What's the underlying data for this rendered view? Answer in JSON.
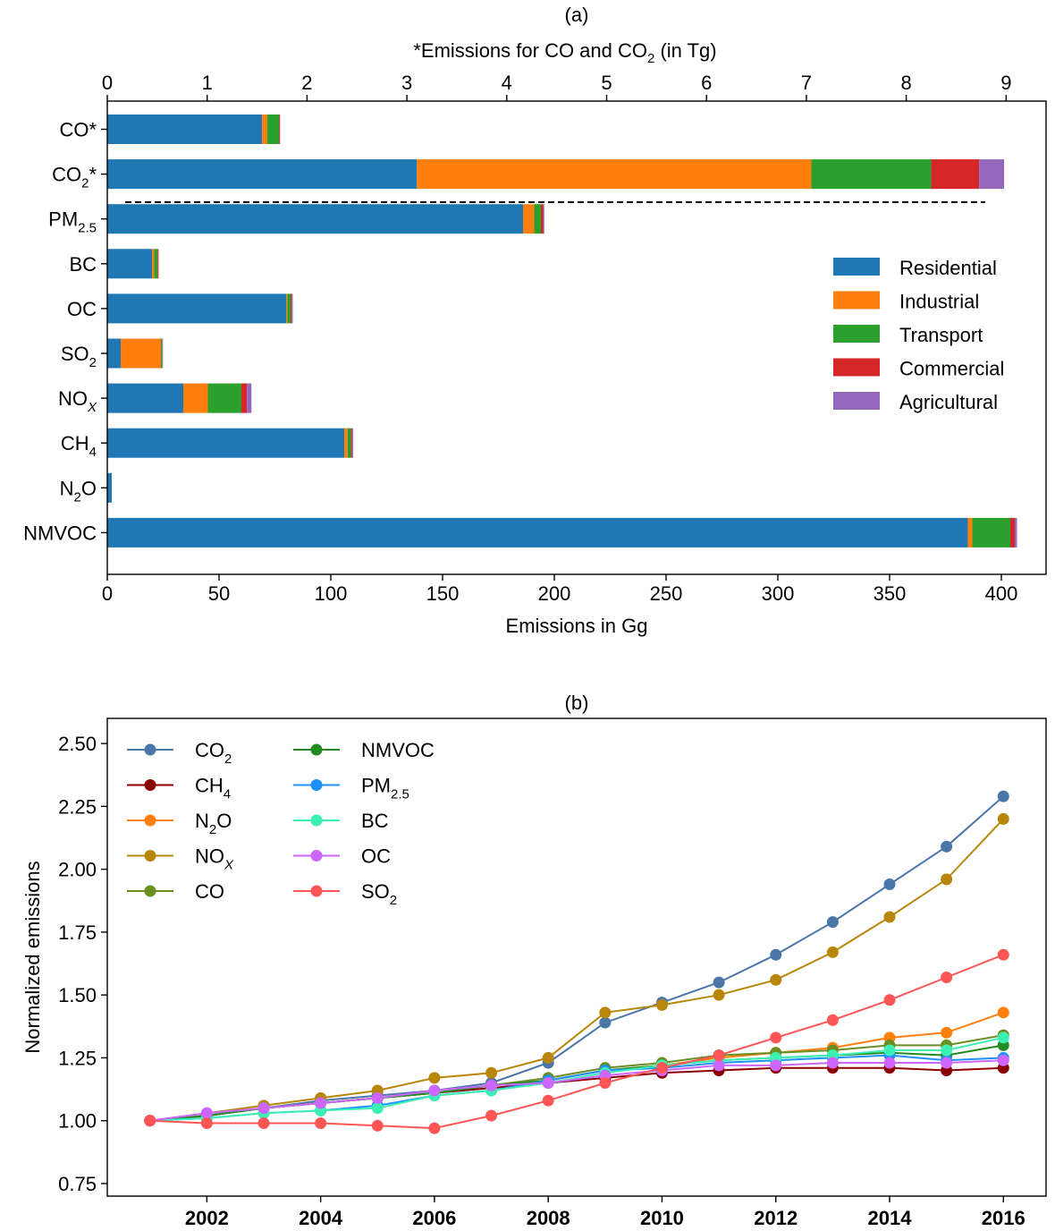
{
  "chart_data": [
    {
      "type": "bar",
      "orientation": "horizontal",
      "stacked": true,
      "panel_label": "(a)",
      "title": "",
      "xlabel": "Emissions in Gg",
      "xlim": [
        0,
        420
      ],
      "xticks": [
        0,
        50,
        100,
        150,
        200,
        250,
        300,
        350,
        400
      ],
      "top_axis": {
        "label_main": "*Emissions for CO and CO",
        "label_sub": "2",
        "label_unit": " (in Tg)",
        "xlim": [
          0,
          9.4
        ],
        "xticks": [
          0,
          1,
          2,
          3,
          4,
          5,
          6,
          7,
          8,
          9
        ],
        "applies_to": [
          "CO*",
          "CO2*"
        ]
      },
      "categories": [
        {
          "base": "CO",
          "sub": "",
          "suffix": "*"
        },
        {
          "base": "CO",
          "sub": "2",
          "suffix": "*"
        },
        {
          "base": "PM",
          "sub": "2.5",
          "suffix": ""
        },
        {
          "base": "BC",
          "sub": "",
          "suffix": ""
        },
        {
          "base": "OC",
          "sub": "",
          "suffix": ""
        },
        {
          "base": "SO",
          "sub": "2",
          "suffix": ""
        },
        {
          "base": "NO",
          "sub": "X",
          "suffix": ""
        },
        {
          "base": "CH",
          "sub": "4",
          "suffix": ""
        },
        {
          "base": "N",
          "sub": "2",
          "suffix": "O"
        },
        {
          "base": "NMVOC",
          "sub": "",
          "suffix": ""
        }
      ],
      "units": [
        "Tg",
        "Tg",
        "Gg",
        "Gg",
        "Gg",
        "Gg",
        "Gg",
        "Gg",
        "Gg",
        "Gg"
      ],
      "series": [
        {
          "name": "Residential",
          "color": "#1f77b4",
          "values": [
            1.55,
            3.1,
            186,
            20,
            80,
            6,
            34,
            106,
            2,
            385
          ]
        },
        {
          "name": "Industrial",
          "color": "#ff7f0e",
          "values": [
            0.05,
            3.95,
            5,
            1,
            0.5,
            18,
            11,
            1.5,
            0,
            2
          ]
        },
        {
          "name": "Transport",
          "color": "#2ca02c",
          "values": [
            0.12,
            1.2,
            3,
            1.5,
            1.5,
            0.5,
            15,
            1.5,
            0,
            17
          ]
        },
        {
          "name": "Commercial",
          "color": "#d62728",
          "values": [
            0.01,
            0.48,
            1,
            0.3,
            0.5,
            0.2,
            2.5,
            0.5,
            0,
            2
          ]
        },
        {
          "name": "Agricultural",
          "color": "#9467bd",
          "values": [
            0.0,
            0.25,
            0.5,
            0.2,
            0.5,
            0.1,
            2,
            0.5,
            0,
            1
          ]
        }
      ],
      "legend_position": "right"
    },
    {
      "type": "line",
      "panel_label": "(b)",
      "title": "",
      "xlabel": "",
      "ylabel": "Normalized emissions",
      "xlim": [
        2000.25,
        2016.75
      ],
      "ylim": [
        0.7,
        2.6
      ],
      "xticks": [
        2002,
        2004,
        2006,
        2008,
        2010,
        2012,
        2014,
        2016
      ],
      "yticks": [
        "0.75",
        "1.00",
        "1.25",
        "1.50",
        "1.75",
        "2.00",
        "2.25",
        "2.50"
      ],
      "x": [
        2001,
        2002,
        2003,
        2004,
        2005,
        2006,
        2007,
        2008,
        2009,
        2010,
        2011,
        2012,
        2013,
        2014,
        2015,
        2016
      ],
      "series": [
        {
          "name": {
            "base": "CO",
            "sub": "2"
          },
          "color": "#4a76a8",
          "values": [
            1.0,
            1.02,
            1.05,
            1.08,
            1.1,
            1.12,
            1.15,
            1.23,
            1.39,
            1.47,
            1.55,
            1.66,
            1.79,
            1.94,
            2.09,
            2.29
          ]
        },
        {
          "name": {
            "base": "CH",
            "sub": "4"
          },
          "color": "#8b0000",
          "values": [
            1.0,
            1.02,
            1.05,
            1.07,
            1.09,
            1.11,
            1.13,
            1.15,
            1.17,
            1.19,
            1.2,
            1.21,
            1.21,
            1.21,
            1.2,
            1.21
          ]
        },
        {
          "name": {
            "base": "N",
            "sub": "2",
            "after": "O"
          },
          "color": "#ff7f0e",
          "values": [
            1.0,
            1.02,
            1.05,
            1.07,
            1.09,
            1.11,
            1.14,
            1.16,
            1.2,
            1.22,
            1.25,
            1.27,
            1.29,
            1.33,
            1.35,
            1.43
          ]
        },
        {
          "name": {
            "base": "NO",
            "sub": "X"
          },
          "color": "#b8860b",
          "values": [
            1.0,
            1.03,
            1.06,
            1.09,
            1.12,
            1.17,
            1.19,
            1.25,
            1.43,
            1.46,
            1.5,
            1.56,
            1.67,
            1.81,
            1.96,
            2.2
          ]
        },
        {
          "name": {
            "base": "CO",
            "sub": ""
          },
          "color": "#6b8e23",
          "values": [
            1.0,
            1.02,
            1.05,
            1.07,
            1.09,
            1.11,
            1.14,
            1.17,
            1.21,
            1.23,
            1.26,
            1.27,
            1.28,
            1.3,
            1.3,
            1.34
          ]
        },
        {
          "name": {
            "base": "NMVOC",
            "sub": ""
          },
          "color": "#228b22",
          "values": [
            1.0,
            1.02,
            1.05,
            1.07,
            1.09,
            1.11,
            1.14,
            1.16,
            1.2,
            1.22,
            1.24,
            1.25,
            1.26,
            1.27,
            1.26,
            1.3
          ]
        },
        {
          "name": {
            "base": "PM",
            "sub": "2.5"
          },
          "color": "#1e90ff",
          "values": [
            1.0,
            1.01,
            1.03,
            1.04,
            1.06,
            1.1,
            1.12,
            1.16,
            1.2,
            1.21,
            1.23,
            1.24,
            1.25,
            1.26,
            1.24,
            1.25
          ]
        },
        {
          "name": {
            "base": "BC",
            "sub": ""
          },
          "color": "#3cf0b4",
          "values": [
            1.0,
            1.01,
            1.03,
            1.04,
            1.05,
            1.1,
            1.12,
            1.15,
            1.19,
            1.22,
            1.24,
            1.25,
            1.26,
            1.28,
            1.28,
            1.33
          ]
        },
        {
          "name": {
            "base": "OC",
            "sub": ""
          },
          "color": "#cc66ff",
          "values": [
            1.0,
            1.03,
            1.05,
            1.07,
            1.09,
            1.12,
            1.14,
            1.15,
            1.18,
            1.2,
            1.22,
            1.22,
            1.23,
            1.23,
            1.23,
            1.24
          ]
        },
        {
          "name": {
            "base": "SO",
            "sub": "2"
          },
          "color": "#ff5555",
          "values": [
            1.0,
            0.99,
            0.99,
            0.99,
            0.98,
            0.97,
            1.02,
            1.08,
            1.15,
            1.21,
            1.26,
            1.33,
            1.4,
            1.48,
            1.57,
            1.66
          ]
        }
      ],
      "legend_position": "top-left"
    }
  ]
}
